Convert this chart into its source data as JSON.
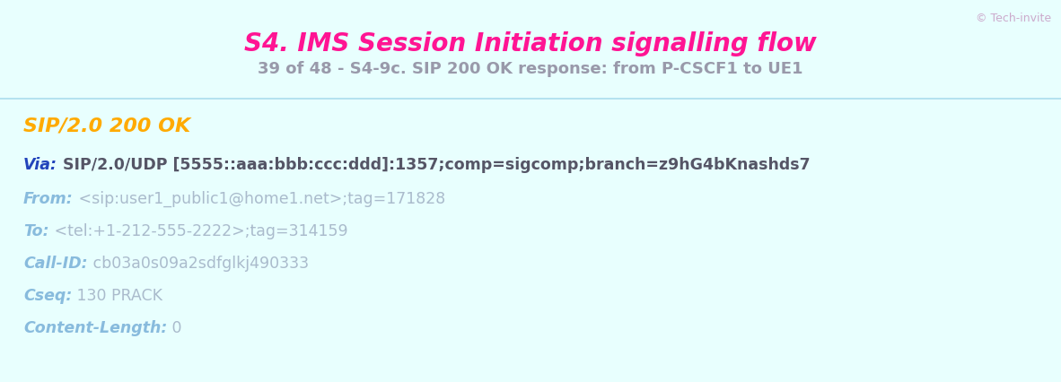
{
  "title": "S4. IMS Session Initiation signalling flow",
  "subtitle": "39 of 48 - S4-9c. SIP 200 OK response: from P-CSCF1 to UE1",
  "copyright": "© Tech-invite",
  "header_bg": "#ccffff",
  "body_bg": "#e8fffe",
  "title_color": "#ff1493",
  "subtitle_color": "#9999aa",
  "copyright_color": "#ccaacc",
  "sip_status_line": "SIP/2.0 200 OK",
  "sip_status_color": "#ffaa00",
  "fields": [
    {
      "label": "Via:",
      "label_color": "#2244bb",
      "value": " SIP/2.0/UDP [5555::aaa:bbb:ccc:ddd]:1357;comp=sigcomp;branch=z9hG4bKnashds7",
      "value_color": "#555566",
      "bold": true
    },
    {
      "label": "From:",
      "label_color": "#88bbdd",
      "value": " <sip:user1_public1@home1.net>;tag=171828",
      "value_color": "#aabbcc",
      "bold": false
    },
    {
      "label": "To:",
      "label_color": "#88bbdd",
      "value": " <tel:+1-212-555-2222>;tag=314159",
      "value_color": "#aabbcc",
      "bold": false
    },
    {
      "label": "Call-ID:",
      "label_color": "#88bbdd",
      "value": " cb03a0s09a2sdfglkj490333",
      "value_color": "#aabbcc",
      "bold": false
    },
    {
      "label": "Cseq:",
      "label_color": "#88bbdd",
      "value": " 130 PRACK",
      "value_color": "#aabbcc",
      "bold": false
    },
    {
      "label": "Content-Length:",
      "label_color": "#88bbdd",
      "value": " 0",
      "value_color": "#aabbcc",
      "bold": false
    }
  ]
}
